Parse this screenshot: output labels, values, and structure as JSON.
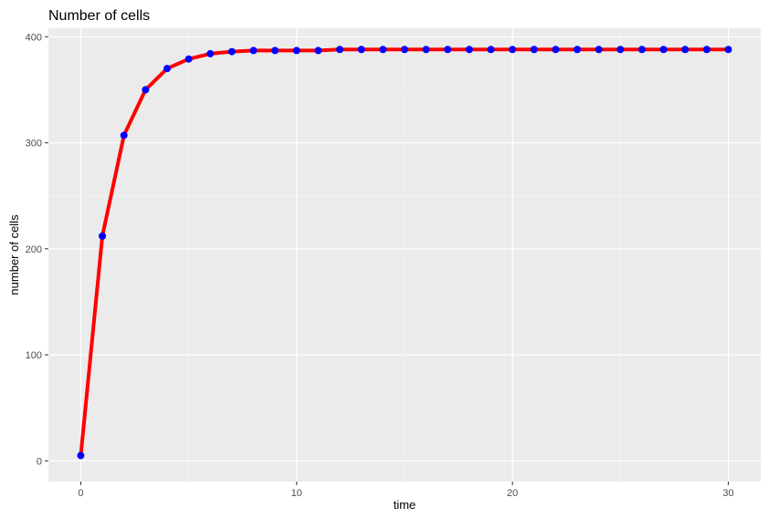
{
  "chart_data": {
    "type": "line",
    "title": "Number of cells",
    "xlabel": "time",
    "ylabel": "number of cells",
    "xlim": [
      -1.5,
      31.5
    ],
    "ylim": [
      -19.5,
      408
    ],
    "x_ticks": [
      0,
      10,
      20,
      30
    ],
    "x_tick_labels": [
      "0",
      "10",
      "20",
      "30"
    ],
    "y_ticks": [
      0,
      100,
      200,
      300,
      400
    ],
    "y_tick_labels": [
      "0",
      "100",
      "200",
      "300",
      "400"
    ],
    "grid": true,
    "series": [
      {
        "x": [
          0,
          1,
          2,
          3,
          4,
          5,
          6,
          7,
          8,
          9,
          10,
          11,
          12,
          13,
          14,
          15,
          16,
          17,
          18,
          19,
          20,
          21,
          22,
          23,
          24,
          25,
          26,
          27,
          28,
          29,
          30
        ],
        "y": [
          5,
          212,
          307,
          350,
          370,
          379,
          384,
          386,
          387,
          387,
          387,
          387,
          388,
          388,
          388,
          388,
          388,
          388,
          388,
          388,
          388,
          388,
          388,
          388,
          388,
          388,
          388,
          388,
          388,
          388,
          388
        ],
        "line_color": "#ff0000",
        "point_color": "#0000ff"
      }
    ],
    "colors": {
      "panel_background": "#ebebeb",
      "grid_major": "#ffffff",
      "grid_minor": "#f5f5f5",
      "tick_text": "#4d4d4d",
      "tick_mark": "#333333"
    }
  }
}
